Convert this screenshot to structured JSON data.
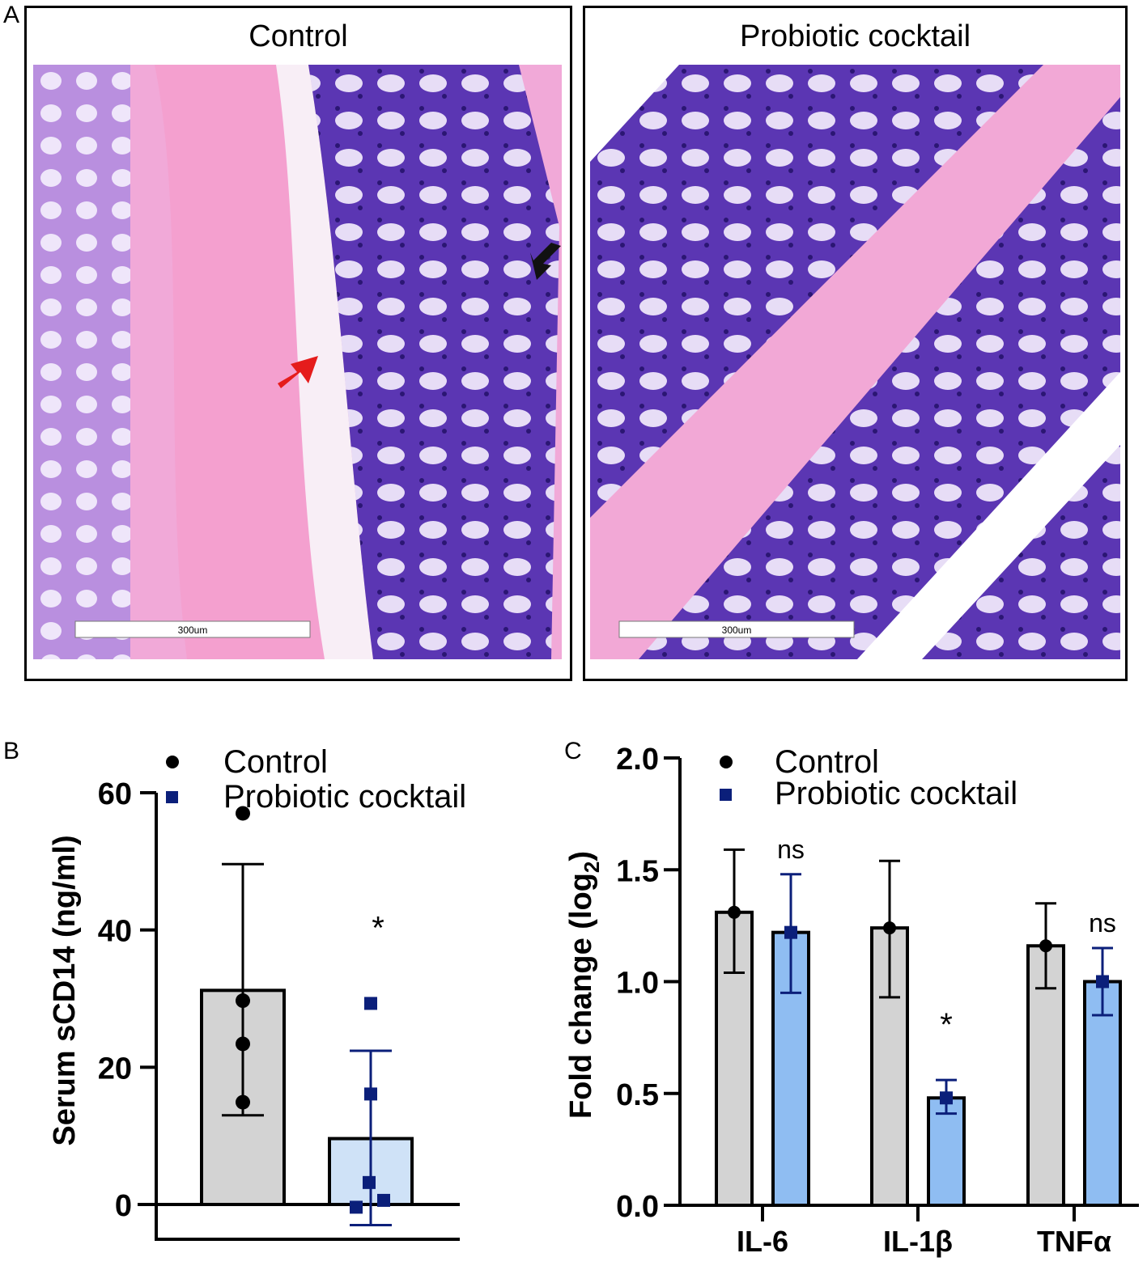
{
  "panelA": {
    "letter": "A",
    "left_title": "Control",
    "right_title": "Probiotic cocktail",
    "scale_bar_left": "300um",
    "scale_bar_right": "300um"
  },
  "panelB": {
    "letter": "B"
  },
  "panelC": {
    "letter": "C"
  },
  "colors": {
    "control_bar": "#d3d3d3",
    "probiotic_bar_B": "#cfe2f7",
    "probiotic_bar_C": "#8fbdf2",
    "probiotic_marker": "#0b1f7a",
    "tissue_pink": "#f2a8d6",
    "tissue_purple": "#6a3fbf"
  },
  "chart_data": [
    {
      "type": "bar",
      "panel": "B",
      "ylabel": "Serum sCD14 (ng/ml)",
      "ylim": [
        0,
        60
      ],
      "yticks": [
        0,
        20,
        40,
        60
      ],
      "categories": [
        "Control",
        "Probiotic cocktail"
      ],
      "legend": [
        "Control",
        "Probiotic cocktail"
      ],
      "series": [
        {
          "name": "Control",
          "mean": 31.2,
          "error_low": 13.0,
          "error_high": 49.6,
          "points": [
            57.0,
            29.7,
            23.4,
            14.9
          ]
        },
        {
          "name": "Probiotic cocktail",
          "mean": 9.6,
          "error_low": -3.0,
          "error_high": 22.4,
          "points": [
            29.3,
            16.1,
            3.2,
            0.6,
            -0.4
          ]
        }
      ],
      "annotations": [
        {
          "text": "*",
          "category": "Probiotic cocktail",
          "y": 42
        }
      ]
    },
    {
      "type": "bar",
      "panel": "C",
      "ylabel": "Fold change (log2)",
      "ylim": [
        0,
        2.0
      ],
      "yticks": [
        "0.0",
        "0.5",
        "1.0",
        "1.5",
        "2.0"
      ],
      "categories": [
        "IL-6",
        "IL-1β",
        "TNFα"
      ],
      "legend": [
        "Control",
        "Probiotic cocktail"
      ],
      "series": [
        {
          "name": "Control",
          "values": [
            1.31,
            1.24,
            1.16
          ],
          "error_low": [
            1.04,
            0.93,
            0.97
          ],
          "error_high": [
            1.59,
            1.54,
            1.35
          ]
        },
        {
          "name": "Probiotic cocktail",
          "values": [
            1.22,
            0.48,
            1.0
          ],
          "error_low": [
            0.95,
            0.41,
            0.85
          ],
          "error_high": [
            1.48,
            0.56,
            1.15
          ]
        }
      ],
      "annotations": [
        {
          "text": "ns",
          "category": "IL-6"
        },
        {
          "text": "*",
          "category": "IL-1β"
        },
        {
          "text": "ns",
          "category": "TNFα"
        }
      ]
    }
  ]
}
